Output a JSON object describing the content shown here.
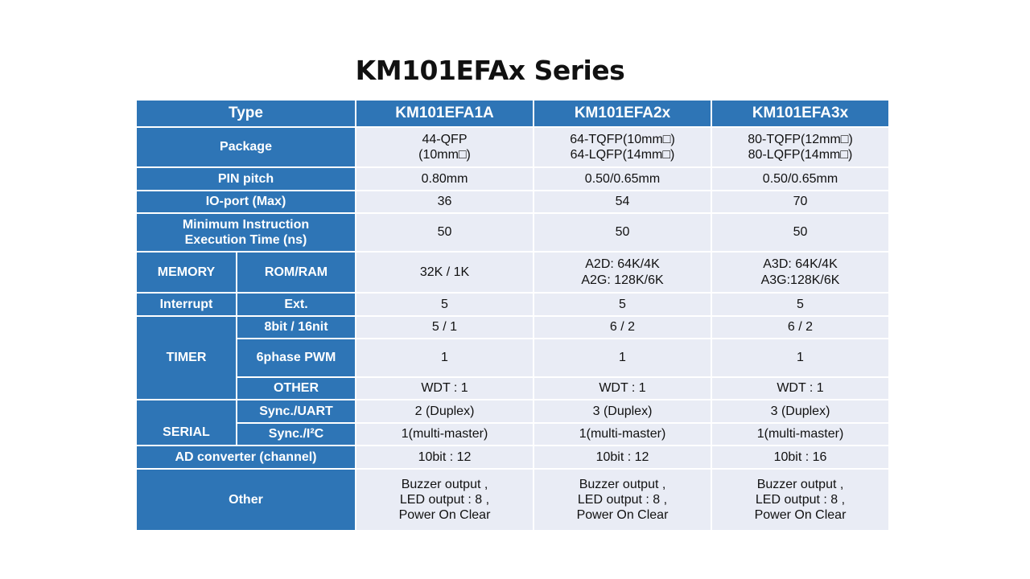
{
  "title": "KM101EFAx Series",
  "table": {
    "header": {
      "type": "Type",
      "col1": "KM101EFA1A",
      "col2": "KM101EFA2x",
      "col3": "KM101EFA3x"
    },
    "rows": {
      "package": {
        "label": "Package",
        "c1": [
          "44-QFP",
          "(10mm□)"
        ],
        "c2": [
          "64-TQFP(10mm□)",
          "64-LQFP(14mm□)"
        ],
        "c3": [
          "80-TQFP(12mm□)",
          "80-LQFP(14mm□)"
        ]
      },
      "pin_pitch": {
        "label": "PIN pitch",
        "c1": "0.80mm",
        "c2": "0.50/0.65mm",
        "c3": "0.50/0.65mm"
      },
      "io_port": {
        "label": "IO-port (Max)",
        "c1": "36",
        "c2": "54",
        "c3": "70"
      },
      "min_instr": {
        "label": [
          "Minimum Instruction",
          "Execution Time (ns)"
        ],
        "c1": "50",
        "c2": "50",
        "c3": "50"
      },
      "memory": {
        "group": "MEMORY",
        "label": "ROM/RAM",
        "c1": "32K / 1K",
        "c2": [
          "A2D: 64K/4K",
          "A2G: 128K/6K"
        ],
        "c3": [
          "A3D: 64K/4K",
          "A3G:128K/6K"
        ]
      },
      "interrupt": {
        "group": "Interrupt",
        "label": "Ext.",
        "c1": "5",
        "c2": "5",
        "c3": "5"
      },
      "timer": {
        "group": "TIMER",
        "bit": {
          "label": "8bit / 16nit",
          "c1": "5 / 1",
          "c2": "6 / 2",
          "c3": "6 / 2"
        },
        "pwm": {
          "label": "6phase PWM",
          "c1": "1",
          "c2": "1",
          "c3": "1"
        },
        "other": {
          "label": "OTHER",
          "c1": "WDT : 1",
          "c2": "WDT : 1",
          "c3": "WDT : 1"
        }
      },
      "serial": {
        "group": "SERIAL",
        "uart": {
          "label": "Sync./UART",
          "c1": "2 (Duplex)",
          "c2": "3 (Duplex)",
          "c3": "3 (Duplex)"
        },
        "i2c": {
          "label": "Sync./I²C",
          "c1": "1(multi-master)",
          "c2": "1(multi-master)",
          "c3": "1(multi-master)"
        }
      },
      "ad_converter": {
        "label": "AD converter (channel)",
        "c1": "10bit : 12",
        "c2": "10bit : 12",
        "c3": "10bit : 16"
      },
      "other": {
        "label": "Other",
        "c1": [
          "Buzzer output ,",
          "LED output : 8 ,",
          "Power On Clear"
        ],
        "c2": [
          "Buzzer output ,",
          "LED output : 8 ,",
          "Power On Clear"
        ],
        "c3": [
          "Buzzer output ,",
          "LED output : 8 ,",
          "Power On Clear"
        ]
      }
    }
  }
}
